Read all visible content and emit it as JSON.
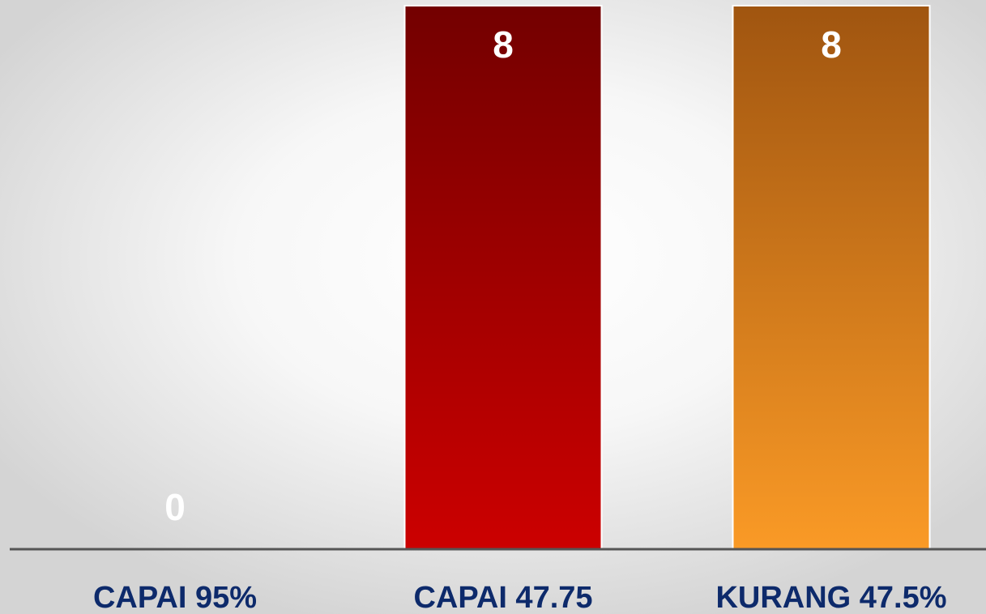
{
  "chart_data": {
    "type": "bar",
    "categories": [
      "CAPAI 95%",
      "CAPAI 47.75",
      "KURANG 47.5%"
    ],
    "values": [
      0,
      8,
      8
    ],
    "colors": [
      [
        "#1f3f8a",
        "#3a67c8"
      ],
      [
        "#730000",
        "#cc0000"
      ],
      [
        "#a05510",
        "#fa9a26"
      ]
    ],
    "ylim": [
      0,
      8
    ]
  }
}
